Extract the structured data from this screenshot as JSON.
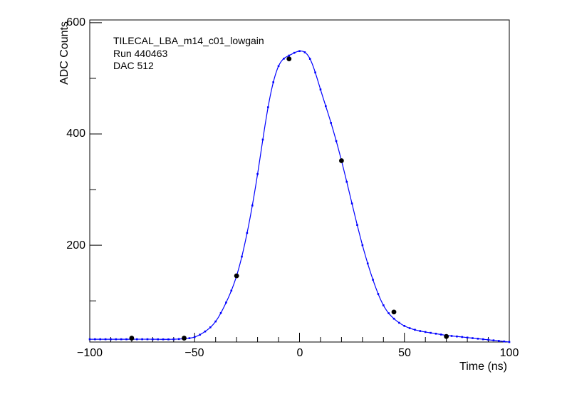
{
  "chart_data": {
    "type": "scatter",
    "annotations": [
      "TILECAL_LBA_m14_c01_lowgain",
      "Run 440463",
      "DAC 512"
    ],
    "xlabel": "Time (ns)",
    "ylabel": "ADC Counts",
    "xlim": [
      -100,
      100
    ],
    "ylim": [
      26,
      605
    ],
    "x_ticks": [
      -100,
      -50,
      0,
      50,
      100
    ],
    "x_tick_labels": [
      "−100",
      "−50",
      "0",
      "50",
      "100"
    ],
    "y_ticks": [
      200,
      400,
      600
    ],
    "y_tick_labels": [
      "200",
      "400",
      "600"
    ],
    "grid": false,
    "legend": "none",
    "series": [
      {
        "kind": "samples",
        "color": "#000000",
        "x": [
          -80,
          -55,
          -30,
          -5,
          20,
          45,
          70
        ],
        "y": [
          33,
          33,
          145,
          535,
          352,
          80,
          36
        ]
      },
      {
        "kind": "fit-curve",
        "color": "#0000ff",
        "x": [
          -100,
          -90,
          -80,
          -70,
          -60,
          -55,
          -50,
          -45,
          -40,
          -35,
          -30,
          -25,
          -20,
          -15,
          -10,
          -5,
          0,
          5,
          10,
          15,
          20,
          25,
          30,
          35,
          40,
          45,
          50,
          55,
          60,
          65,
          70,
          75,
          80,
          85,
          90,
          95,
          100
        ],
        "y": [
          31,
          31,
          31,
          31,
          31,
          32,
          35,
          45,
          63,
          97,
          145,
          222,
          328,
          448,
          522,
          541,
          549,
          535,
          480,
          420,
          352,
          275,
          200,
          138,
          92,
          68,
          55,
          48,
          44,
          41,
          38,
          36,
          34,
          32,
          30,
          28,
          26
        ]
      }
    ]
  }
}
